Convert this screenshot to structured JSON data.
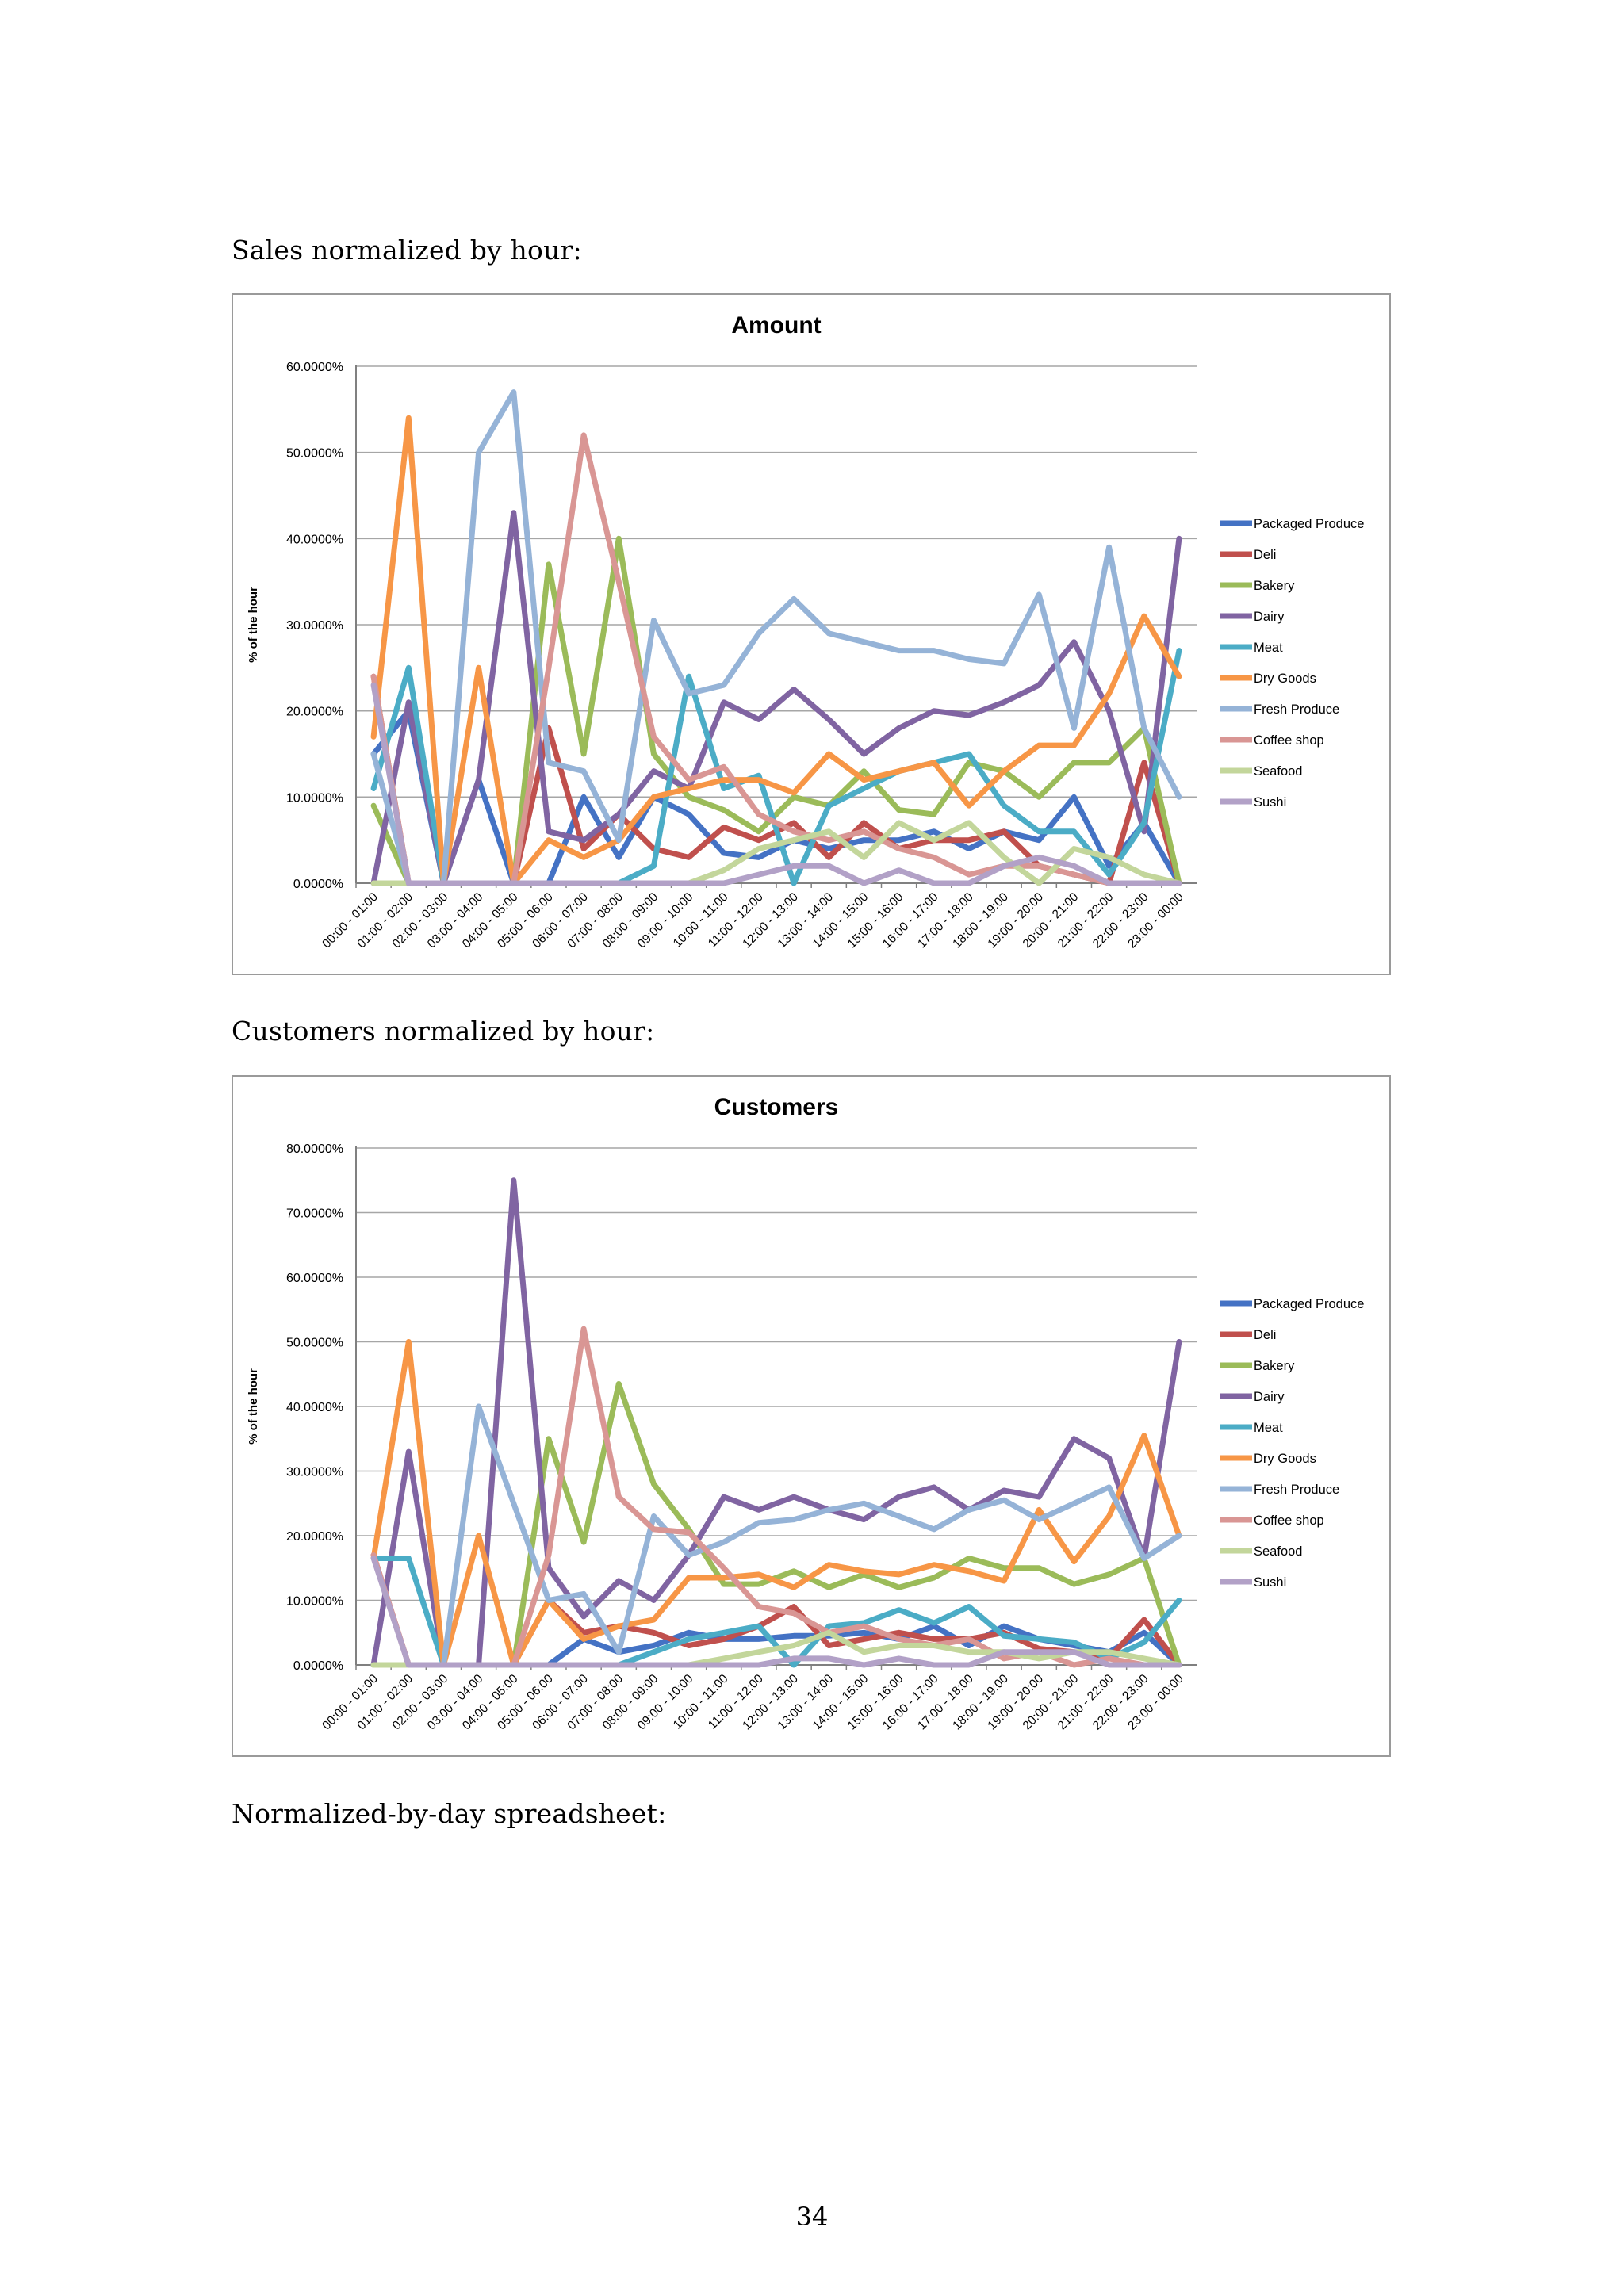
{
  "page": {
    "caption_sales": "Sales normalized by hour:",
    "caption_customers": "Customers normalized by hour:",
    "caption_spreadsheet": "Normalized-by-day spreadsheet:",
    "page_number": "34"
  },
  "chart_data": [
    {
      "type": "line",
      "title": "Amount",
      "xlabel": "",
      "ylabel": "% of the hour",
      "ylim": [
        0,
        60
      ],
      "yticks": [
        0,
        10,
        20,
        30,
        40,
        50,
        60
      ],
      "ytick_labels": [
        "0.0000%",
        "10.0000%",
        "20.0000%",
        "30.0000%",
        "40.0000%",
        "50.0000%",
        "60.0000%"
      ],
      "legend_position": "right",
      "categories": [
        "00:00 - 01:00",
        "01:00 - 02:00",
        "02:00 - 03:00",
        "03:00 - 04:00",
        "04:00 - 05:00",
        "05:00 - 06:00",
        "06:00 - 07:00",
        "07:00 - 08:00",
        "08:00 - 09:00",
        "09:00 - 10:00",
        "10:00 - 11:00",
        "11:00 - 12:00",
        "12:00 - 13:00",
        "13:00 - 14:00",
        "14:00 - 15:00",
        "15:00 - 16:00",
        "16:00 - 17:00",
        "17:00 - 18:00",
        "18:00 - 19:00",
        "19:00 - 20:00",
        "20:00 - 21:00",
        "21:00 - 22:00",
        "22:00 - 23:00",
        "23:00 - 00:00"
      ],
      "series": [
        {
          "name": "Packaged Produce",
          "color": "#4472c4",
          "values": [
            15,
            20,
            0,
            12,
            0,
            0,
            10,
            3,
            10,
            8,
            3.5,
            3,
            5,
            4,
            5,
            5,
            6,
            4,
            6,
            5,
            10,
            2,
            7,
            0
          ]
        },
        {
          "name": "Deli",
          "color": "#c0504d",
          "values": [
            24,
            0,
            0,
            0,
            0,
            18,
            4,
            8,
            4,
            3,
            6.5,
            5,
            7,
            3,
            7,
            4,
            5,
            5,
            6,
            2,
            1,
            0,
            14,
            0
          ]
        },
        {
          "name": "Bakery",
          "color": "#9bbb59",
          "values": [
            9,
            0,
            0,
            0,
            0,
            37,
            15,
            40,
            15,
            10,
            8.5,
            6,
            10,
            9,
            13,
            8.5,
            8,
            14,
            13,
            10,
            14,
            14,
            18,
            0
          ]
        },
        {
          "name": "Dairy",
          "color": "#8064a2",
          "values": [
            0,
            21,
            0,
            12,
            43,
            6,
            5,
            8,
            13,
            11,
            21,
            19,
            22.5,
            19,
            15,
            18,
            20,
            19.5,
            21,
            23,
            28,
            20,
            6,
            40
          ]
        },
        {
          "name": "Meat",
          "color": "#4bacc6",
          "values": [
            11,
            25,
            0,
            0,
            0,
            0,
            0,
            0,
            2,
            24,
            11,
            12.5,
            0,
            9,
            11,
            13,
            14,
            15,
            9,
            6,
            6,
            1,
            7,
            27
          ]
        },
        {
          "name": "Dry Goods",
          "color": "#f79646",
          "values": [
            17,
            54,
            0,
            25,
            0,
            5,
            3,
            5,
            10,
            11,
            12,
            12,
            10.5,
            15,
            12,
            13,
            14,
            9,
            13,
            16,
            16,
            22,
            31,
            24
          ]
        },
        {
          "name": "Fresh Produce",
          "color": "#95b3d7",
          "values": [
            15,
            0,
            0,
            50,
            57,
            14,
            13,
            5,
            30.5,
            22,
            23,
            29,
            33,
            29,
            28,
            27,
            27,
            26,
            25.5,
            33.5,
            18,
            39,
            18,
            10
          ]
        },
        {
          "name": "Coffee shop",
          "color": "#d99694",
          "values": [
            24,
            0,
            0,
            0,
            0,
            25,
            52,
            35,
            17,
            12,
            13.5,
            8,
            6,
            5,
            6,
            4,
            3,
            1,
            2,
            2,
            1,
            0,
            0,
            0
          ]
        },
        {
          "name": "Seafood",
          "color": "#c3d69b",
          "values": [
            0,
            0,
            0,
            0,
            0,
            0,
            0,
            0,
            0,
            0,
            1.5,
            4,
            5,
            6,
            3,
            7,
            5,
            7,
            3,
            0,
            4,
            3,
            1,
            0
          ]
        },
        {
          "name": "Sushi",
          "color": "#b2a1c7",
          "values": [
            23,
            0,
            0,
            0,
            0,
            0,
            0,
            0,
            0,
            0,
            0,
            1,
            2,
            2,
            0,
            1.5,
            0,
            0,
            2,
            3,
            2,
            0,
            0,
            0
          ]
        }
      ]
    },
    {
      "type": "line",
      "title": "Customers",
      "xlabel": "",
      "ylabel": "% of the hour",
      "ylim": [
        0,
        80
      ],
      "yticks": [
        0,
        10,
        20,
        30,
        40,
        50,
        60,
        70,
        80
      ],
      "ytick_labels": [
        "0.0000%",
        "10.0000%",
        "20.0000%",
        "30.0000%",
        "40.0000%",
        "50.0000%",
        "60.0000%",
        "70.0000%",
        "80.0000%"
      ],
      "legend_position": "right",
      "categories": [
        "00:00 - 01:00",
        "01:00 - 02:00",
        "02:00 - 03:00",
        "03:00 - 04:00",
        "04:00 - 05:00",
        "05:00 - 06:00",
        "06:00 - 07:00",
        "07:00 - 08:00",
        "08:00 - 09:00",
        "09:00 - 10:00",
        "10:00 - 11:00",
        "11:00 - 12:00",
        "12:00 - 13:00",
        "13:00 - 14:00",
        "14:00 - 15:00",
        "15:00 - 16:00",
        "16:00 - 17:00",
        "17:00 - 18:00",
        "18:00 - 19:00",
        "19:00 - 20:00",
        "20:00 - 21:00",
        "21:00 - 22:00",
        "22:00 - 23:00",
        "23:00 - 00:00"
      ],
      "series": [
        {
          "name": "Packaged Produce",
          "color": "#4472c4",
          "values": [
            0,
            0,
            0,
            0,
            0,
            0,
            4,
            2,
            3,
            5,
            4,
            4,
            4.5,
            4.5,
            5,
            4,
            6,
            3,
            6,
            4,
            3,
            2,
            5,
            0
          ]
        },
        {
          "name": "Deli",
          "color": "#c0504d",
          "values": [
            17,
            0,
            0,
            0,
            0,
            10,
            5,
            6,
            5,
            3,
            4,
            6,
            9,
            3,
            4,
            5,
            4,
            4,
            5,
            2.5,
            2,
            1,
            7,
            0
          ]
        },
        {
          "name": "Bakery",
          "color": "#9bbb59",
          "values": [
            0,
            0,
            0,
            0,
            0,
            35,
            19,
            43.5,
            28,
            21,
            12.5,
            12.5,
            14.5,
            12,
            14,
            12,
            13.5,
            16.5,
            15,
            15,
            12.5,
            14,
            16.5,
            0
          ]
        },
        {
          "name": "Dairy",
          "color": "#8064a2",
          "values": [
            0,
            33,
            0,
            0,
            75,
            15,
            7.5,
            13,
            10,
            17,
            26,
            24,
            26,
            24,
            22.5,
            26,
            27.5,
            24,
            27,
            26,
            35,
            32,
            16.5,
            50
          ]
        },
        {
          "name": "Meat",
          "color": "#4bacc6",
          "values": [
            16.5,
            16.5,
            0,
            0,
            0,
            0,
            0,
            0,
            2,
            4,
            5,
            6,
            0,
            6,
            6.5,
            8.5,
            6.5,
            9,
            4.5,
            4,
            3.5,
            1,
            3.5,
            10
          ]
        },
        {
          "name": "Dry Goods",
          "color": "#f79646",
          "values": [
            16.5,
            50,
            0,
            20,
            0,
            10,
            4,
            6,
            7,
            13.5,
            13.5,
            14,
            12,
            15.5,
            14.5,
            14,
            15.5,
            14.5,
            13,
            24,
            16,
            23,
            35.5,
            20
          ]
        },
        {
          "name": "Fresh Produce",
          "color": "#95b3d7",
          "values": [
            0,
            0,
            0,
            40,
            25,
            10,
            11,
            2,
            23,
            17,
            19,
            22,
            22.5,
            24,
            25,
            23,
            21,
            24,
            25.5,
            22.5,
            25,
            27.5,
            16.5,
            20
          ]
        },
        {
          "name": "Coffee shop",
          "color": "#d99694",
          "values": [
            17,
            0,
            0,
            0,
            0,
            17,
            52,
            26,
            21,
            20.5,
            15,
            9,
            8,
            5,
            6,
            4,
            3,
            4,
            1,
            2,
            0,
            1,
            0,
            0
          ]
        },
        {
          "name": "Seafood",
          "color": "#c3d69b",
          "values": [
            0,
            0,
            0,
            0,
            0,
            0,
            0,
            0,
            0,
            0,
            1,
            2,
            3,
            5,
            2,
            3,
            3,
            2,
            2,
            1,
            2,
            2,
            1,
            0
          ]
        },
        {
          "name": "Sushi",
          "color": "#b2a1c7",
          "values": [
            16.5,
            0,
            0,
            0,
            0,
            0,
            0,
            0,
            0,
            0,
            0,
            0,
            1,
            1,
            0,
            1,
            0,
            0,
            2,
            2,
            2,
            0,
            0,
            0
          ]
        }
      ]
    }
  ]
}
